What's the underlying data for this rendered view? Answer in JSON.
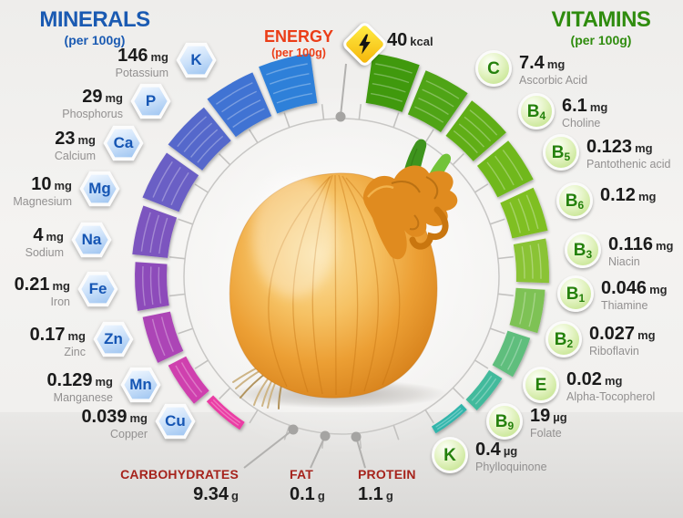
{
  "header_left": {
    "title": "MINERALS",
    "subtitle": "(per 100g)"
  },
  "header_right": {
    "title": "VITAMINS",
    "subtitle": "(per 100g)"
  },
  "energy": {
    "title": "ENERGY",
    "subtitle": "(per 100g)",
    "amount": "40",
    "unit": "kcal",
    "icon": "lightning-icon"
  },
  "minerals": [
    {
      "symbol": "K",
      "amount": "146",
      "unit": "mg",
      "name": "Potassium"
    },
    {
      "symbol": "P",
      "amount": "29",
      "unit": "mg",
      "name": "Phosphorus"
    },
    {
      "symbol": "Ca",
      "amount": "23",
      "unit": "mg",
      "name": "Calcium"
    },
    {
      "symbol": "Mg",
      "amount": "10",
      "unit": "mg",
      "name": "Magnesium"
    },
    {
      "symbol": "Na",
      "amount": "4",
      "unit": "mg",
      "name": "Sodium"
    },
    {
      "symbol": "Fe",
      "amount": "0.21",
      "unit": "mg",
      "name": "Iron"
    },
    {
      "symbol": "Zn",
      "amount": "0.17",
      "unit": "mg",
      "name": "Zinc"
    },
    {
      "symbol": "Mn",
      "amount": "0.129",
      "unit": "mg",
      "name": "Manganese"
    },
    {
      "symbol": "Cu",
      "amount": "0.039",
      "unit": "mg",
      "name": "Copper"
    }
  ],
  "vitamins": [
    {
      "letter": "C",
      "sub": "",
      "amount": "7.4",
      "unit": "mg",
      "name": "Ascorbic Acid"
    },
    {
      "letter": "B",
      "sub": "4",
      "amount": "6.1",
      "unit": "mg",
      "name": "Choline"
    },
    {
      "letter": "B",
      "sub": "5",
      "amount": "0.123",
      "unit": "mg",
      "name": "Pantothenic acid"
    },
    {
      "letter": "B",
      "sub": "6",
      "amount": "0.12",
      "unit": "mg",
      "name": ""
    },
    {
      "letter": "B",
      "sub": "3",
      "amount": "0.116",
      "unit": "mg",
      "name": "Niacin"
    },
    {
      "letter": "B",
      "sub": "1",
      "amount": "0.046",
      "unit": "mg",
      "name": "Thiamine"
    },
    {
      "letter": "B",
      "sub": "2",
      "amount": "0.027",
      "unit": "mg",
      "name": "Riboflavin"
    },
    {
      "letter": "E",
      "sub": "",
      "amount": "0.02",
      "unit": "mg",
      "name": "Alpha-Tocopherol"
    },
    {
      "letter": "B",
      "sub": "9",
      "amount": "19",
      "unit": "µg",
      "name": "Folate"
    },
    {
      "letter": "K",
      "sub": "",
      "amount": "0.4",
      "unit": "µg",
      "name": "Phylloquinone"
    }
  ],
  "macros": [
    {
      "label": "CARBOHYDRATES",
      "amount": "9.34",
      "unit": "g"
    },
    {
      "label": "FAT",
      "amount": "0.1",
      "unit": "g"
    },
    {
      "label": "PROTEIN",
      "amount": "1.1",
      "unit": "g"
    }
  ],
  "colors": {
    "minerals_title": "#1a5ab2",
    "vitamins_title": "#2f8c0e",
    "energy_title": "#eb3d17",
    "macro_label": "#a6231c",
    "ring_line": "#c8c7c5",
    "tick": "#c3c2c0",
    "connector": "#b2b1af",
    "dot": "#a5a4a2",
    "hex_letter": "#1656b4",
    "badge_letter": "#25810c",
    "mineral_segments": [
      "#2f80d9",
      "#4173d3",
      "#5568cb",
      "#6a5ec5",
      "#7b55bf",
      "#8d4cba",
      "#ac45b6",
      "#cf40ae",
      "#ea3da4"
    ],
    "vitamin_segments": [
      "#3f990f",
      "#4fa414",
      "#60ae18",
      "#70b81d",
      "#7fbf24",
      "#8ac336",
      "#7ec254",
      "#5fbe7d",
      "#43ba9c",
      "#30b5ab"
    ]
  },
  "ring": {
    "mineral_segment_lengths": [
      55,
      52,
      47,
      43,
      39,
      35,
      31,
      22,
      10
    ],
    "vitamin_segment_lengths": [
      55,
      52,
      48,
      44,
      40,
      36,
      32,
      26,
      17,
      9
    ]
  },
  "chart_data": {
    "type": "radial-bar",
    "title": "Onion nutrition infographic (per 100 g)",
    "energy_kcal": 40,
    "series": [
      {
        "name": "Minerals (per 100g)",
        "categories": [
          "Potassium (K)",
          "Phosphorus (P)",
          "Calcium (Ca)",
          "Magnesium (Mg)",
          "Sodium (Na)",
          "Iron (Fe)",
          "Zinc (Zn)",
          "Manganese (Mn)",
          "Copper (Cu)"
        ],
        "values": [
          146,
          29,
          23,
          10,
          4,
          0.21,
          0.17,
          0.129,
          0.039
        ],
        "units": [
          "mg",
          "mg",
          "mg",
          "mg",
          "mg",
          "mg",
          "mg",
          "mg",
          "mg"
        ]
      },
      {
        "name": "Vitamins (per 100g)",
        "categories": [
          "C (Ascorbic Acid)",
          "B4 (Choline)",
          "B5 (Pantothenic acid)",
          "B6",
          "B3 (Niacin)",
          "B1 (Thiamine)",
          "B2 (Riboflavin)",
          "E (Alpha-Tocopherol)",
          "B9 (Folate)",
          "K (Phylloquinone)"
        ],
        "values": [
          7.4,
          6.1,
          0.123,
          0.12,
          0.116,
          0.046,
          0.027,
          0.02,
          19,
          0.4
        ],
        "units": [
          "mg",
          "mg",
          "mg",
          "mg",
          "mg",
          "mg",
          "mg",
          "mg",
          "µg",
          "µg"
        ]
      }
    ],
    "macronutrients_g": {
      "carbohydrates": 9.34,
      "fat": 0.1,
      "protein": 1.1
    },
    "legend_position": "around-ring",
    "layout_hint": "minerals on left half-arc (blue to pink), vitamins on right half-arc (green to teal), bar length decreases with rank"
  }
}
